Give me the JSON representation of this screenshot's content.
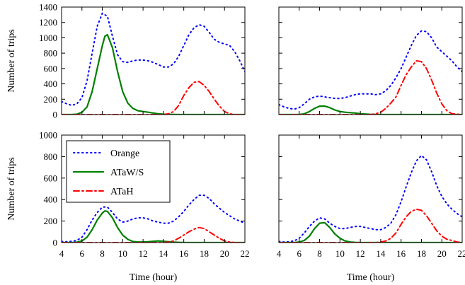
{
  "colors": {
    "Orange": "#0000ff",
    "ATaW/S": "#008000",
    "ATaH": "#ff0000"
  },
  "legend": {
    "placement": "inside top-left of lower-left panel",
    "entries": [
      "Orange",
      "ATaW/S",
      "ATaH"
    ]
  },
  "chart_data": [
    {
      "type": "line",
      "panel": "top-left",
      "xlim": [
        4,
        22
      ],
      "ylim": [
        0,
        1400
      ],
      "yticks": [
        0,
        200,
        400,
        600,
        800,
        1000,
        1200,
        1400
      ],
      "xticks": [],
      "xlabel": "",
      "ylabel": "Number of trips",
      "series": [
        {
          "name": "Orange",
          "style": "dotted",
          "x": [
            4,
            4.5,
            5,
            5.5,
            6,
            6.5,
            7,
            7.5,
            8,
            8.5,
            9,
            9.5,
            10,
            10.5,
            11,
            11.5,
            12,
            12.5,
            13,
            13.5,
            14,
            14.5,
            15,
            15.5,
            16,
            16.5,
            17,
            17.5,
            18,
            18.5,
            19,
            19.5,
            20,
            20.5,
            21,
            21.5,
            22
          ],
          "y": [
            170,
            140,
            120,
            140,
            220,
            440,
            800,
            1150,
            1320,
            1280,
            1020,
            780,
            690,
            680,
            700,
            710,
            710,
            700,
            680,
            650,
            620,
            620,
            660,
            760,
            900,
            1040,
            1130,
            1170,
            1150,
            1070,
            980,
            940,
            920,
            900,
            820,
            700,
            560
          ]
        },
        {
          "name": "ATaW/S",
          "style": "solid",
          "x": [
            4,
            5,
            5.5,
            6,
            6.5,
            7,
            7.5,
            8,
            8.25,
            8.5,
            9,
            9.5,
            10,
            10.5,
            11,
            11.5,
            12,
            12.5,
            13,
            13.5,
            14,
            15,
            16,
            18,
            20,
            22
          ],
          "y": [
            0,
            0,
            5,
            30,
            100,
            300,
            600,
            900,
            1020,
            1040,
            870,
            560,
            300,
            150,
            80,
            50,
            40,
            30,
            20,
            10,
            5,
            2,
            0,
            0,
            0,
            0
          ]
        },
        {
          "name": "ATaH",
          "style": "dashdot",
          "x": [
            4,
            6,
            8,
            10,
            12,
            13,
            14,
            14.5,
            15,
            15.5,
            16,
            16.5,
            17,
            17.5,
            18,
            18.5,
            19,
            19.5,
            20,
            20.5,
            21,
            22
          ],
          "y": [
            0,
            0,
            0,
            0,
            0,
            0,
            0,
            10,
            40,
            120,
            250,
            350,
            420,
            430,
            380,
            300,
            200,
            110,
            40,
            10,
            0,
            0
          ]
        }
      ]
    },
    {
      "type": "line",
      "panel": "top-right",
      "xlim": [
        4,
        22
      ],
      "ylim": [
        0,
        1400
      ],
      "yticks": [],
      "xticks": [],
      "series": [
        {
          "name": "Orange",
          "style": "dotted",
          "x": [
            4,
            4.5,
            5,
            5.5,
            6,
            6.5,
            7,
            7.5,
            8,
            8.5,
            9,
            9.5,
            10,
            10.5,
            11,
            11.5,
            12,
            12.5,
            13,
            13.5,
            14,
            14.5,
            15,
            15.5,
            16,
            16.5,
            17,
            17.5,
            18,
            18.5,
            19,
            19.5,
            20,
            20.5,
            21,
            21.5,
            22
          ],
          "y": [
            130,
            100,
            80,
            70,
            90,
            140,
            200,
            230,
            240,
            230,
            220,
            210,
            210,
            220,
            240,
            260,
            270,
            270,
            270,
            260,
            270,
            310,
            380,
            480,
            600,
            750,
            900,
            1030,
            1090,
            1080,
            1000,
            880,
            820,
            760,
            700,
            620,
            560
          ]
        },
        {
          "name": "ATaW/S",
          "style": "solid",
          "x": [
            4,
            6,
            6.5,
            7,
            7.5,
            8,
            8.5,
            9,
            9.5,
            10,
            10.5,
            11,
            11.5,
            12,
            13,
            14,
            16,
            18,
            20,
            22
          ],
          "y": [
            0,
            0,
            10,
            40,
            80,
            110,
            110,
            90,
            60,
            40,
            30,
            25,
            20,
            10,
            3,
            0,
            0,
            0,
            0,
            0
          ]
        },
        {
          "name": "ATaH",
          "style": "dashdot",
          "x": [
            4,
            6,
            8,
            10,
            12,
            13,
            13.5,
            14,
            14.5,
            15,
            15.5,
            16,
            16.5,
            17,
            17.5,
            18,
            18.5,
            19,
            19.5,
            20,
            20.5,
            21,
            22
          ],
          "y": [
            0,
            0,
            0,
            0,
            0,
            0,
            10,
            30,
            80,
            150,
            230,
            380,
            520,
            620,
            700,
            690,
            600,
            450,
            280,
            140,
            50,
            10,
            0
          ]
        }
      ]
    },
    {
      "type": "line",
      "panel": "bottom-left",
      "xlim": [
        4,
        22
      ],
      "ylim": [
        0,
        1000
      ],
      "yticks": [
        0,
        200,
        400,
        600,
        800,
        1000
      ],
      "xticks": [
        4,
        6,
        8,
        10,
        12,
        14,
        16,
        18,
        20,
        22
      ],
      "xlabel": "Time (hour)",
      "ylabel": "Number of trips",
      "series": [
        {
          "name": "Orange",
          "style": "dotted",
          "x": [
            4,
            4.5,
            5,
            5.5,
            6,
            6.5,
            7,
            7.5,
            8,
            8.5,
            9,
            9.5,
            10,
            10.5,
            11,
            11.5,
            12,
            12.5,
            13,
            13.5,
            14,
            14.5,
            15,
            15.5,
            16,
            16.5,
            17,
            17.5,
            18,
            18.5,
            19,
            19.5,
            20,
            20.5,
            21,
            21.5,
            22
          ],
          "y": [
            10,
            8,
            12,
            20,
            50,
            120,
            210,
            280,
            330,
            330,
            280,
            220,
            190,
            200,
            220,
            230,
            230,
            220,
            200,
            190,
            180,
            180,
            200,
            240,
            290,
            350,
            400,
            440,
            440,
            410,
            360,
            320,
            280,
            250,
            220,
            200,
            180
          ]
        },
        {
          "name": "ATaW/S",
          "style": "solid",
          "x": [
            4,
            5,
            5.5,
            6,
            6.5,
            7,
            7.5,
            8,
            8.25,
            8.5,
            9,
            9.5,
            10,
            10.5,
            11,
            11.5,
            12,
            12.5,
            13,
            13.5,
            14,
            14.5,
            15,
            16,
            18,
            20,
            22
          ],
          "y": [
            0,
            0,
            3,
            15,
            50,
            120,
            210,
            275,
            295,
            290,
            230,
            140,
            70,
            30,
            10,
            5,
            5,
            8,
            12,
            15,
            12,
            8,
            4,
            0,
            0,
            0,
            0
          ]
        },
        {
          "name": "ATaH",
          "style": "dashdot",
          "x": [
            4,
            6,
            8,
            10,
            12,
            14,
            14.5,
            15,
            15.5,
            16,
            16.5,
            17,
            17.5,
            18,
            18.5,
            19,
            19.5,
            20,
            20.5,
            21,
            22
          ],
          "y": [
            0,
            0,
            0,
            0,
            0,
            0,
            5,
            15,
            40,
            70,
            100,
            125,
            140,
            130,
            100,
            70,
            40,
            15,
            5,
            0,
            0
          ]
        }
      ]
    },
    {
      "type": "line",
      "panel": "bottom-right",
      "xlim": [
        4,
        22
      ],
      "ylim": [
        0,
        1000
      ],
      "yticks": [],
      "xticks": [
        4,
        6,
        8,
        10,
        12,
        14,
        16,
        18,
        20,
        22
      ],
      "xlabel": "Time (hour)",
      "series": [
        {
          "name": "Orange",
          "style": "dotted",
          "x": [
            4,
            4.5,
            5,
            5.5,
            6,
            6.5,
            7,
            7.5,
            8,
            8.5,
            9,
            9.5,
            10,
            10.5,
            11,
            11.5,
            12,
            12.5,
            13,
            13.5,
            14,
            14.5,
            15,
            15.5,
            16,
            16.5,
            17,
            17.5,
            18,
            18.5,
            19,
            19.5,
            20,
            20.5,
            21,
            21.5,
            22
          ],
          "y": [
            10,
            5,
            8,
            15,
            40,
            90,
            150,
            200,
            230,
            220,
            180,
            150,
            130,
            130,
            140,
            150,
            150,
            140,
            130,
            120,
            120,
            140,
            180,
            260,
            380,
            520,
            650,
            760,
            810,
            770,
            660,
            530,
            430,
            360,
            310,
            270,
            240
          ]
        },
        {
          "name": "ATaW/S",
          "style": "solid",
          "x": [
            4,
            5.5,
            6,
            6.5,
            7,
            7.5,
            8,
            8.5,
            9,
            9.5,
            10,
            10.5,
            11,
            11.5,
            12,
            14,
            16,
            18,
            20,
            22
          ],
          "y": [
            0,
            0,
            5,
            20,
            60,
            130,
            180,
            185,
            140,
            80,
            40,
            15,
            5,
            2,
            0,
            0,
            0,
            0,
            0,
            0
          ]
        },
        {
          "name": "ATaH",
          "style": "dashdot",
          "x": [
            4,
            6,
            8,
            10,
            12,
            13.5,
            14,
            14.5,
            15,
            15.5,
            16,
            16.5,
            17,
            17.5,
            18,
            18.5,
            19,
            19.5,
            20,
            20.5,
            21,
            21.5,
            22
          ],
          "y": [
            0,
            0,
            0,
            0,
            0,
            0,
            5,
            15,
            40,
            90,
            170,
            240,
            290,
            310,
            300,
            250,
            180,
            110,
            60,
            30,
            20,
            5,
            0
          ]
        }
      ]
    }
  ]
}
